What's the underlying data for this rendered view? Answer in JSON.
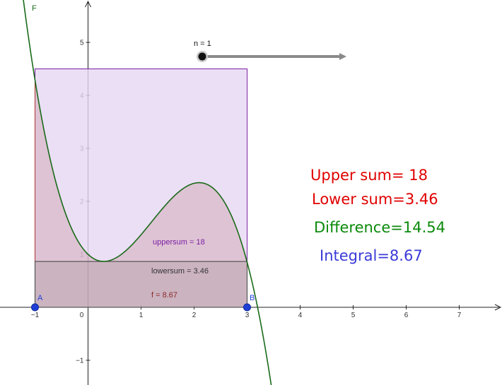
{
  "graph": {
    "function_label": "F",
    "point_a_label": "A",
    "point_b_label": "B",
    "x_ticks": [
      "−1",
      "0",
      "1",
      "2",
      "3",
      "4",
      "5",
      "6",
      "7"
    ],
    "y_ticks": [
      "5",
      "4",
      "3",
      "2",
      "1",
      "−1"
    ],
    "x_range": [
      -1.65,
      7.8
    ],
    "y_range": [
      -1.45,
      5.8
    ],
    "interval": [
      -1,
      3
    ],
    "upper_rect_height": 4.5,
    "lower_rect_height": 0.865,
    "colors": {
      "upper": "#7a1fa2",
      "lower": "#555555",
      "integral_fill": "#b06060",
      "curve": "#1a6b1a",
      "point": "#1f3fd6"
    }
  },
  "slider": {
    "label": "n = 1",
    "value": 1
  },
  "plot_labels": {
    "uppersum": "uppersum = 18",
    "lowersum": "lowersum = 3.46",
    "f": "f = 8.67"
  },
  "results": {
    "upper": "Upper sum= 18",
    "lower": "Lower sum=3.46",
    "difference": "Difference=14.54",
    "integral": "Integral=8.67",
    "colors": {
      "upper": "#e00000",
      "lower": "#e00000",
      "difference": "#0a8a0a",
      "integral": "#3a3ad8"
    }
  }
}
